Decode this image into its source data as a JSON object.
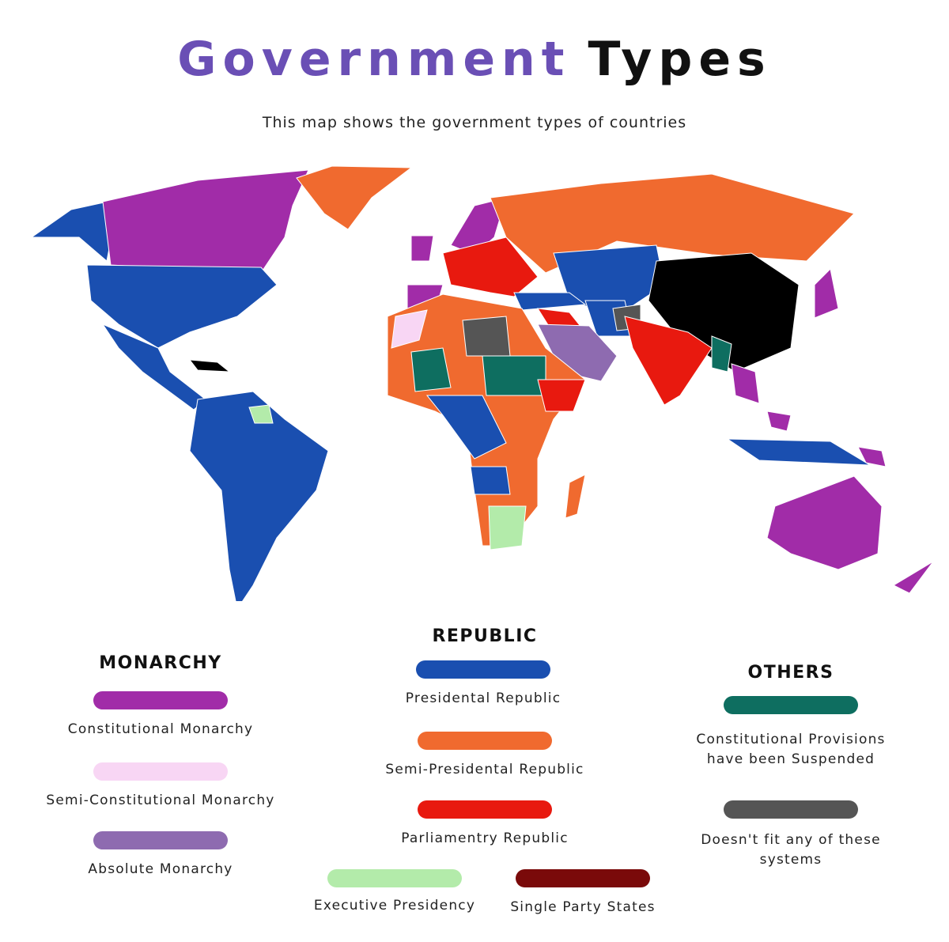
{
  "header": {
    "title_part1": "Government",
    "title_part2": "Types",
    "subtitle": "This map shows the government types of countries"
  },
  "legend": {
    "groups": [
      {
        "title": "MONARCHY",
        "items": [
          {
            "label": "Constitutional Monarchy",
            "color": "#a12ca8"
          },
          {
            "label": "Semi-Constitutional Monarchy",
            "color": "#f8d6f4"
          },
          {
            "label": "Absolute Monarchy",
            "color": "#8e6bb0"
          }
        ]
      },
      {
        "title": "REPUBLIC",
        "items": [
          {
            "label": "Presidental Republic",
            "color": "#1a4fb0"
          },
          {
            "label": "Semi-Presidental Republic",
            "color": "#f06a2f"
          },
          {
            "label": "Parliamentry Republic",
            "color": "#e8190f"
          },
          {
            "label": "Executive Presidency",
            "color": "#b3ebaa"
          },
          {
            "label": "Single Party States",
            "color": "#7a0a0a"
          }
        ]
      },
      {
        "title": "OTHERS",
        "items": [
          {
            "label": "Constitutional Provisions\nhave been Suspended",
            "color": "#0e6e60"
          },
          {
            "label": "Doesn't fit any of these\nsystems",
            "color": "#555555"
          }
        ]
      }
    ]
  }
}
